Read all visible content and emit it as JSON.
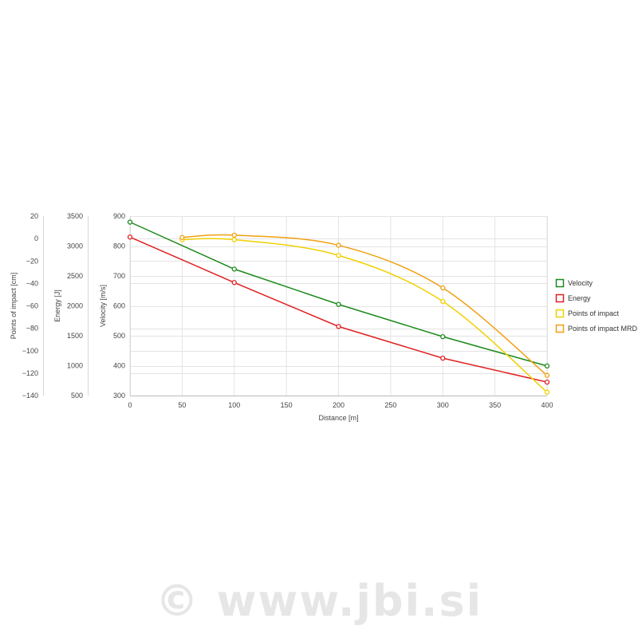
{
  "chart_data": {
    "type": "line",
    "xlabel": "Distance [m]",
    "x_ticks": [
      "0",
      "50",
      "100",
      "150",
      "200",
      "250",
      "300",
      "350",
      "400"
    ],
    "xlim": [
      0,
      400
    ],
    "axes": [
      {
        "id": "poi",
        "label": "Points of impact [cm]",
        "range": [
          -140,
          20
        ],
        "ticks": [
          "20",
          "0",
          "−20",
          "−40",
          "−60",
          "−80",
          "−100",
          "−120",
          "−140"
        ]
      },
      {
        "id": "energy",
        "label": "Energy [J]",
        "range": [
          500,
          3500
        ],
        "ticks": [
          "3500",
          "3000",
          "2500",
          "2000",
          "1500",
          "1000",
          "500"
        ]
      },
      {
        "id": "velocity",
        "label": "Velocity [m/s]",
        "range": [
          300,
          900
        ],
        "ticks": [
          "900",
          "800",
          "700",
          "600",
          "500",
          "400",
          "300"
        ]
      }
    ],
    "series": [
      {
        "name": "Velocity",
        "axis": "velocity",
        "color": "#1a8a1a",
        "smooth": false,
        "points": [
          [
            0,
            880
          ],
          [
            100,
            723
          ],
          [
            200,
            605
          ],
          [
            300,
            497
          ],
          [
            400,
            399
          ]
        ]
      },
      {
        "name": "Energy",
        "axis": "energy",
        "color": "#e02020",
        "smooth": false,
        "points": [
          [
            0,
            3150
          ],
          [
            100,
            2390
          ],
          [
            200,
            1655
          ],
          [
            300,
            1125
          ],
          [
            400,
            725
          ]
        ]
      },
      {
        "name": "Points of impact",
        "axis": "poi",
        "color": "#f0d000",
        "smooth": true,
        "points": [
          [
            50,
            -1
          ],
          [
            100,
            -1
          ],
          [
            200,
            -15
          ],
          [
            300,
            -56
          ],
          [
            400,
            -137
          ]
        ]
      },
      {
        "name": "Points of impact MRD",
        "axis": "poi",
        "color": "#f0a010",
        "smooth": true,
        "points": [
          [
            50,
            1
          ],
          [
            100,
            3
          ],
          [
            200,
            -6
          ],
          [
            300,
            -44
          ],
          [
            400,
            -122
          ]
        ]
      }
    ],
    "legend_position": "right",
    "grid": true
  },
  "watermark": "© www.jbi.si"
}
